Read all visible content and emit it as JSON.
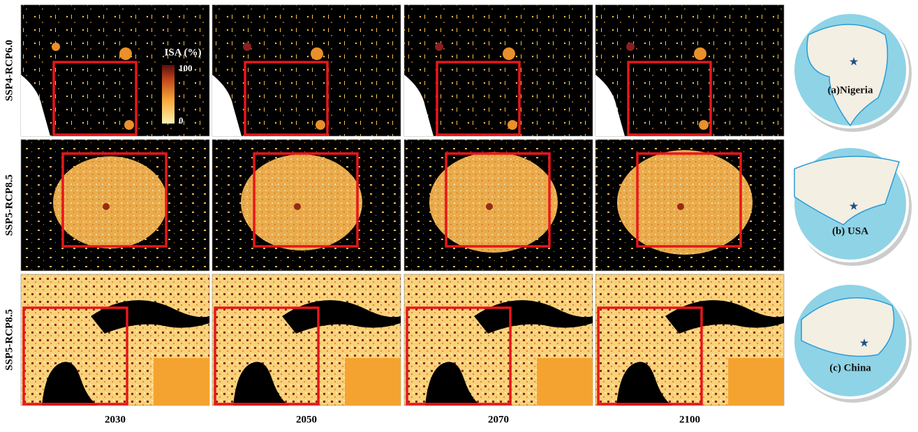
{
  "figure": {
    "row_labels": [
      "SSP4-RCP6.0",
      "SSP5-RCP8.5",
      "SSP5-RCP8.5"
    ],
    "column_labels": [
      "2030",
      "2050",
      "2070",
      "2100"
    ],
    "colorbar": {
      "title": "ISA (%)",
      "max_label": "100",
      "min_label": "0"
    },
    "globe_labels": [
      "(a)Nigeria",
      "(b) USA",
      "(c) China"
    ]
  }
}
